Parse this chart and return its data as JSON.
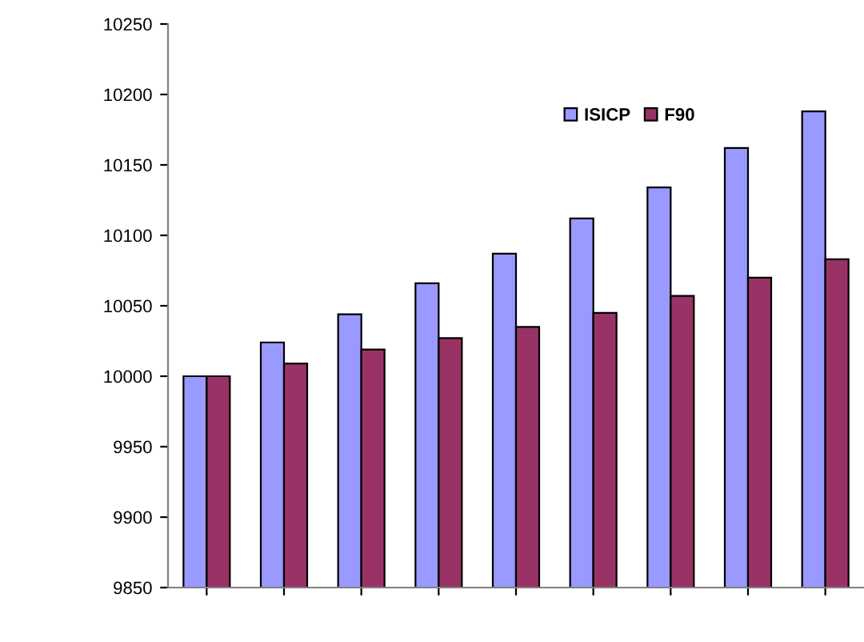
{
  "chart_data": {
    "type": "bar",
    "categories": [
      null,
      null,
      null,
      null,
      null,
      null,
      null,
      null,
      null
    ],
    "series": [
      {
        "name": "ISICP",
        "color": "#9999ff",
        "values": [
          10000,
          10024,
          10044,
          10066,
          10087,
          10112,
          10134,
          10162,
          10188
        ]
      },
      {
        "name": "F90",
        "color": "#993366",
        "values": [
          10000,
          10009,
          10019,
          10027,
          10035,
          10045,
          10057,
          10070,
          10083
        ]
      }
    ],
    "ylim": [
      9850,
      10250
    ],
    "yticks": [
      9850,
      9900,
      9950,
      10000,
      10050,
      10100,
      10150,
      10200,
      10250
    ],
    "grid": false,
    "legend": "top right"
  }
}
